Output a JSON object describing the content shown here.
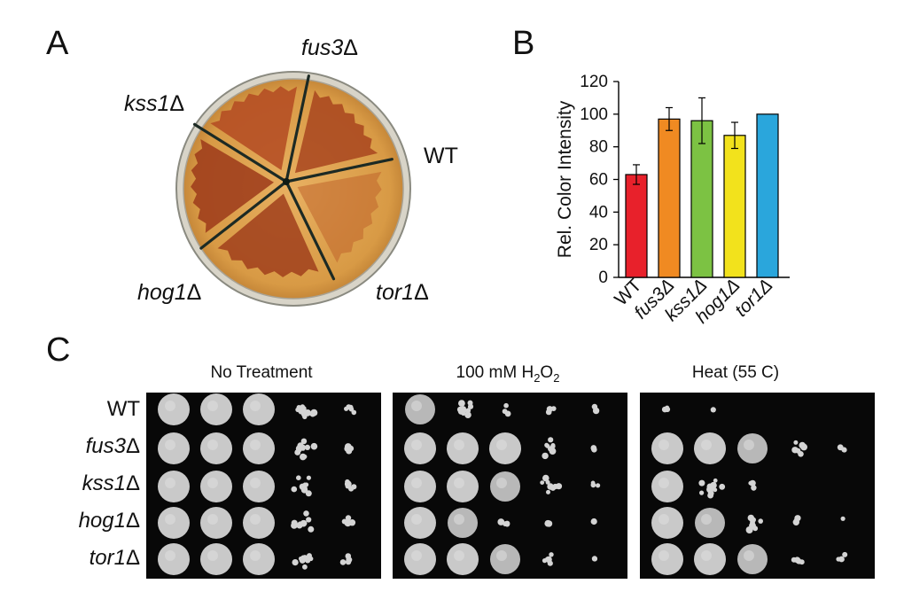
{
  "panels": {
    "a_label": "A",
    "b_label": "B",
    "c_label": "C"
  },
  "panel_a": {
    "plate_labels": [
      {
        "name": "fus3",
        "sym": "Δ",
        "italic": true
      },
      {
        "name": "kss1",
        "sym": "Δ",
        "italic": true
      },
      {
        "name": "WT",
        "sym": "",
        "italic": false
      },
      {
        "name": "hog1",
        "sym": "Δ",
        "italic": true
      },
      {
        "name": "tor1",
        "sym": "Δ",
        "italic": true
      }
    ]
  },
  "chart_data": {
    "type": "bar",
    "ylabel": "Rel. Color Intensity",
    "ylim": [
      0,
      120
    ],
    "yticks": [
      "0",
      "20",
      "40",
      "60",
      "80",
      "100",
      "120"
    ],
    "categories": [
      "WT",
      "fus3Δ",
      "kss1Δ",
      "hog1Δ",
      "tor1Δ"
    ],
    "category_italic": [
      false,
      true,
      true,
      true,
      true
    ],
    "values": [
      63,
      97,
      96,
      87,
      100
    ],
    "errors": [
      6,
      7,
      14,
      8,
      0
    ],
    "colors": [
      "#e8212b",
      "#f08a22",
      "#7cc243",
      "#f2e21c",
      "#2aa6dc"
    ],
    "grid": false,
    "legend": "none"
  },
  "panel_c": {
    "conditions": [
      {
        "label_main": "No Treatment",
        "sub1": "",
        "mid": "",
        "sub2": ""
      },
      {
        "label_main": "100 mM H",
        "sub1": "2",
        "mid": "O",
        "sub2": "2"
      },
      {
        "label_main": "Heat (55 C)",
        "sub1": "",
        "mid": "",
        "sub2": ""
      }
    ],
    "rows": [
      {
        "name": "WT",
        "sym": "",
        "italic": false
      },
      {
        "name": "fus3",
        "sym": "Δ",
        "italic": true
      },
      {
        "name": "kss1",
        "sym": "Δ",
        "italic": true
      },
      {
        "name": "hog1",
        "sym": "Δ",
        "italic": true
      },
      {
        "name": "tor1",
        "sym": "Δ",
        "italic": true
      }
    ],
    "growth": [
      [
        [
          1,
          1,
          1,
          0.6,
          0.25
        ],
        [
          1,
          1,
          1,
          0.6,
          0.25
        ],
        [
          1,
          1,
          1,
          0.65,
          0.3
        ],
        [
          1,
          1,
          1,
          0.55,
          0.2
        ],
        [
          1,
          1,
          1,
          0.55,
          0.25
        ]
      ],
      [
        [
          0.8,
          0.55,
          0.15,
          0.15,
          0.1
        ],
        [
          1,
          1,
          1,
          0.45,
          0.15
        ],
        [
          1,
          1,
          0.9,
          0.5,
          0.15
        ],
        [
          1,
          0.8,
          0.35,
          0.1,
          0.05
        ],
        [
          1,
          1,
          0.8,
          0.25,
          0.1
        ]
      ],
      [
        [
          0.15,
          0.05,
          0,
          0,
          0
        ],
        [
          1,
          1,
          0.75,
          0.35,
          0.15
        ],
        [
          1,
          0.7,
          0.15,
          0,
          0
        ],
        [
          1,
          0.85,
          0.45,
          0.15,
          0.05
        ],
        [
          1,
          1,
          0.8,
          0.4,
          0.15
        ]
      ]
    ]
  }
}
